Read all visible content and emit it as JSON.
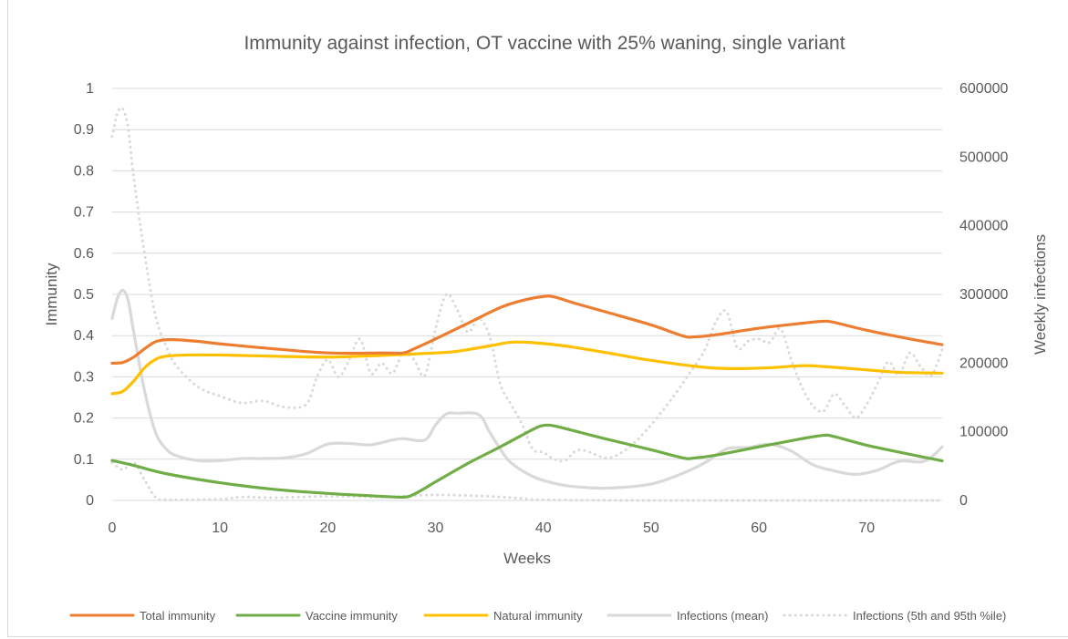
{
  "chart_data": {
    "type": "line",
    "title": "Immunity against infection, OT vaccine with 25% waning, single variant",
    "xlabel": "Weeks",
    "ylabel": "Immunity",
    "y2label": "Weekly infections",
    "xlim": [
      0,
      77
    ],
    "ylim": [
      0,
      1
    ],
    "y2lim": [
      0,
      600000
    ],
    "x_ticks": [
      "0",
      "10",
      "20",
      "30",
      "40",
      "50",
      "60",
      "70"
    ],
    "y_ticks": [
      "0",
      "0.1",
      "0.2",
      "0.3",
      "0.4",
      "0.5",
      "0.6",
      "0.7",
      "0.8",
      "0.9",
      "1"
    ],
    "y2_ticks": [
      "0",
      "100000",
      "200000",
      "300000",
      "400000",
      "500000",
      "600000"
    ],
    "grid": true,
    "legend_position": "bottom",
    "series": [
      {
        "name": "Total immunity",
        "color": "#ed7d31",
        "axis": "left",
        "style": "solid",
        "points": [
          [
            0,
            0.333
          ],
          [
            1,
            0.335
          ],
          [
            2,
            0.348
          ],
          [
            3,
            0.368
          ],
          [
            4,
            0.385
          ],
          [
            5,
            0.39
          ],
          [
            6,
            0.39
          ],
          [
            8,
            0.386
          ],
          [
            10,
            0.38
          ],
          [
            15,
            0.368
          ],
          [
            20,
            0.358
          ],
          [
            25,
            0.358
          ],
          [
            27,
            0.358
          ],
          [
            28,
            0.368
          ],
          [
            30,
            0.392
          ],
          [
            33,
            0.43
          ],
          [
            36,
            0.468
          ],
          [
            38,
            0.485
          ],
          [
            40,
            0.495
          ],
          [
            41,
            0.494
          ],
          [
            43,
            0.478
          ],
          [
            46,
            0.456
          ],
          [
            50,
            0.426
          ],
          [
            53,
            0.399
          ],
          [
            54,
            0.397
          ],
          [
            56,
            0.402
          ],
          [
            60,
            0.418
          ],
          [
            64,
            0.43
          ],
          [
            66,
            0.435
          ],
          [
            67,
            0.432
          ],
          [
            70,
            0.413
          ],
          [
            74,
            0.392
          ],
          [
            77,
            0.378
          ]
        ]
      },
      {
        "name": "Vaccine immunity",
        "color": "#70ad47",
        "axis": "left",
        "style": "solid",
        "points": [
          [
            0,
            0.097
          ],
          [
            2,
            0.085
          ],
          [
            5,
            0.065
          ],
          [
            10,
            0.043
          ],
          [
            15,
            0.027
          ],
          [
            20,
            0.017
          ],
          [
            25,
            0.01
          ],
          [
            27,
            0.008
          ],
          [
            28,
            0.015
          ],
          [
            30,
            0.045
          ],
          [
            33,
            0.09
          ],
          [
            36,
            0.13
          ],
          [
            39,
            0.172
          ],
          [
            40,
            0.182
          ],
          [
            41,
            0.181
          ],
          [
            43,
            0.168
          ],
          [
            46,
            0.148
          ],
          [
            50,
            0.123
          ],
          [
            53,
            0.103
          ],
          [
            54,
            0.103
          ],
          [
            56,
            0.11
          ],
          [
            60,
            0.13
          ],
          [
            64,
            0.15
          ],
          [
            66,
            0.158
          ],
          [
            67,
            0.155
          ],
          [
            70,
            0.134
          ],
          [
            74,
            0.112
          ],
          [
            77,
            0.096
          ]
        ]
      },
      {
        "name": "Natural immunity",
        "color": "#ffc000",
        "axis": "left",
        "style": "solid",
        "points": [
          [
            0,
            0.259
          ],
          [
            1,
            0.265
          ],
          [
            2,
            0.29
          ],
          [
            3,
            0.322
          ],
          [
            4,
            0.342
          ],
          [
            5,
            0.35
          ],
          [
            7,
            0.353
          ],
          [
            10,
            0.353
          ],
          [
            15,
            0.35
          ],
          [
            20,
            0.348
          ],
          [
            25,
            0.352
          ],
          [
            30,
            0.358
          ],
          [
            32,
            0.362
          ],
          [
            35,
            0.375
          ],
          [
            37,
            0.384
          ],
          [
            39,
            0.383
          ],
          [
            42,
            0.375
          ],
          [
            46,
            0.358
          ],
          [
            50,
            0.34
          ],
          [
            55,
            0.323
          ],
          [
            58,
            0.32
          ],
          [
            61,
            0.322
          ],
          [
            64,
            0.327
          ],
          [
            66,
            0.325
          ],
          [
            70,
            0.317
          ],
          [
            73,
            0.311
          ],
          [
            77,
            0.309
          ]
        ]
      },
      {
        "name": "Infections (mean)",
        "color": "#d9d9d9",
        "axis": "right",
        "style": "solid",
        "points": [
          [
            0,
            265000
          ],
          [
            0.5,
            295000
          ],
          [
            1,
            306000
          ],
          [
            1.5,
            290000
          ],
          [
            2,
            245000
          ],
          [
            3,
            160000
          ],
          [
            4,
            100000
          ],
          [
            5,
            75000
          ],
          [
            6,
            65000
          ],
          [
            8,
            58000
          ],
          [
            10,
            58000
          ],
          [
            12,
            61000
          ],
          [
            14,
            61000
          ],
          [
            16,
            62000
          ],
          [
            18,
            68000
          ],
          [
            20,
            82000
          ],
          [
            22,
            83000
          ],
          [
            24,
            81000
          ],
          [
            26,
            88000
          ],
          [
            27,
            90000
          ],
          [
            29,
            88000
          ],
          [
            30,
            110000
          ],
          [
            31,
            126000
          ],
          [
            32,
            127000
          ],
          [
            34,
            125000
          ],
          [
            35,
            100000
          ],
          [
            36,
            75000
          ],
          [
            37,
            55000
          ],
          [
            39,
            35000
          ],
          [
            41,
            25000
          ],
          [
            43,
            20000
          ],
          [
            46,
            18000
          ],
          [
            50,
            24000
          ],
          [
            53,
            40000
          ],
          [
            55,
            55000
          ],
          [
            57,
            75000
          ],
          [
            59,
            77000
          ],
          [
            61,
            82000
          ],
          [
            63,
            72000
          ],
          [
            65,
            52000
          ],
          [
            67,
            43000
          ],
          [
            69,
            38000
          ],
          [
            71,
            44000
          ],
          [
            73,
            57000
          ],
          [
            75,
            56000
          ],
          [
            76,
            63000
          ],
          [
            77,
            78000
          ]
        ]
      },
      {
        "name": "Infections (5th and 95th %ile)",
        "color": "#d9d9d9",
        "axis": "right",
        "style": "dotted",
        "lower": [
          [
            0,
            55000
          ],
          [
            1,
            45000
          ],
          [
            2,
            55000
          ],
          [
            3,
            30000
          ],
          [
            4,
            5000
          ],
          [
            5,
            1000
          ],
          [
            10,
            2000
          ],
          [
            12,
            5000
          ],
          [
            15,
            4000
          ],
          [
            20,
            6000
          ],
          [
            25,
            5000
          ],
          [
            30,
            8000
          ],
          [
            35,
            6000
          ],
          [
            38,
            3000
          ],
          [
            40,
            1000
          ],
          [
            50,
            0
          ],
          [
            60,
            0
          ],
          [
            70,
            0
          ],
          [
            77,
            0
          ]
        ],
        "upper": [
          [
            0,
            530000
          ],
          [
            0.5,
            565000
          ],
          [
            1,
            570000
          ],
          [
            1.5,
            540000
          ],
          [
            2,
            470000
          ],
          [
            3,
            360000
          ],
          [
            4,
            270000
          ],
          [
            5,
            225000
          ],
          [
            6,
            195000
          ],
          [
            8,
            165000
          ],
          [
            10,
            152000
          ],
          [
            12,
            142000
          ],
          [
            14,
            145000
          ],
          [
            16,
            136000
          ],
          [
            18,
            140000
          ],
          [
            19,
            180000
          ],
          [
            20,
            205000
          ],
          [
            21,
            180000
          ],
          [
            22,
            205000
          ],
          [
            23,
            235000
          ],
          [
            24,
            185000
          ],
          [
            25,
            200000
          ],
          [
            26,
            185000
          ],
          [
            27,
            215000
          ],
          [
            28,
            205000
          ],
          [
            29,
            182000
          ],
          [
            30,
            250000
          ],
          [
            31,
            300000
          ],
          [
            32,
            278000
          ],
          [
            33,
            245000
          ],
          [
            34,
            265000
          ],
          [
            35,
            240000
          ],
          [
            36,
            170000
          ],
          [
            37,
            140000
          ],
          [
            38,
            112000
          ],
          [
            39,
            75000
          ],
          [
            40,
            70000
          ],
          [
            41,
            60000
          ],
          [
            42,
            58000
          ],
          [
            43,
            72000
          ],
          [
            44,
            72000
          ],
          [
            46,
            62000
          ],
          [
            48,
            78000
          ],
          [
            50,
            110000
          ],
          [
            52,
            150000
          ],
          [
            54,
            195000
          ],
          [
            55,
            220000
          ],
          [
            56,
            260000
          ],
          [
            57,
            275000
          ],
          [
            58,
            222000
          ],
          [
            59,
            232000
          ],
          [
            60,
            235000
          ],
          [
            61,
            230000
          ],
          [
            62,
            250000
          ],
          [
            63,
            205000
          ],
          [
            64,
            165000
          ],
          [
            65,
            138000
          ],
          [
            66,
            130000
          ],
          [
            67,
            155000
          ],
          [
            68,
            138000
          ],
          [
            69,
            120000
          ],
          [
            70,
            140000
          ],
          [
            71,
            170000
          ],
          [
            72,
            202000
          ],
          [
            73,
            183000
          ],
          [
            74,
            215000
          ],
          [
            75,
            195000
          ],
          [
            76,
            182000
          ],
          [
            77,
            220000
          ]
        ]
      }
    ]
  }
}
